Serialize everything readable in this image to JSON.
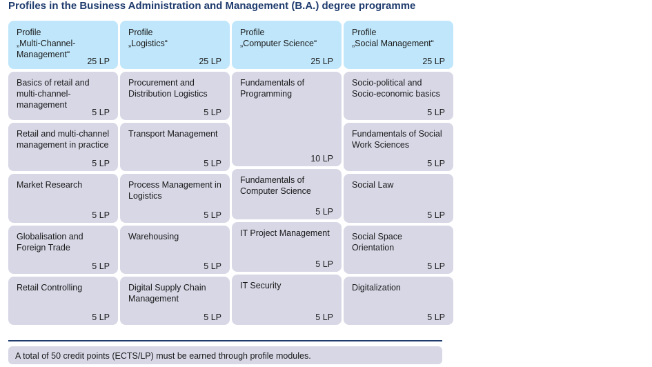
{
  "title": "Profiles in the Business Administration and Management (B.A.) degree programme",
  "profiles": [
    {
      "label": "Profile",
      "name": "„Multi-Channel-Management“",
      "credits": "25 LP",
      "modules": [
        {
          "name": "Basics of retail and multi-channel-management",
          "credits": "5 LP"
        },
        {
          "name": "Retail and multi-channel management in practice",
          "credits": "5 LP"
        },
        {
          "name": "Market Research",
          "credits": "5 LP"
        },
        {
          "name": "Globalisation and Foreign Trade",
          "credits": "5 LP"
        },
        {
          "name": "Retail Controlling",
          "credits": "5 LP"
        }
      ]
    },
    {
      "label": "Profile",
      "name": "„Logistics“",
      "credits": "25 LP",
      "modules": [
        {
          "name": "Procurement and Distribution Logistics",
          "credits": "5 LP"
        },
        {
          "name": "Transport Management",
          "credits": "5 LP"
        },
        {
          "name": "Process Management in Logistics",
          "credits": "5 LP"
        },
        {
          "name": "Warehousing",
          "credits": "5 LP"
        },
        {
          "name": "Digital Supply Chain Management",
          "credits": "5 LP"
        }
      ]
    },
    {
      "label": "Profile",
      "name": "„Computer Science“",
      "credits": "25 LP",
      "modules": [
        {
          "name": "Fundamentals of Programming",
          "credits": "10 LP"
        },
        {
          "name": "Fundamentals of Computer Science",
          "credits": "5 LP"
        },
        {
          "name": "IT Project Management",
          "credits": "5 LP"
        },
        {
          "name": "IT Security",
          "credits": "5 LP"
        }
      ]
    },
    {
      "label": "Profile",
      "name": "„Social Management“",
      "credits": "25 LP",
      "modules": [
        {
          "name": "Socio-political and Socio-economic basics",
          "credits": "5 LP"
        },
        {
          "name": "Fundamentals of Social Work Sciences",
          "credits": "5 LP"
        },
        {
          "name": "Social Law",
          "credits": "5 LP"
        },
        {
          "name": "Social Space Orientation",
          "credits": "5 LP"
        },
        {
          "name": "Digitalization",
          "credits": "5 LP"
        }
      ]
    }
  ],
  "footer": "A total of 50 credit points (ECTS/LP) must be earned through profile modules."
}
